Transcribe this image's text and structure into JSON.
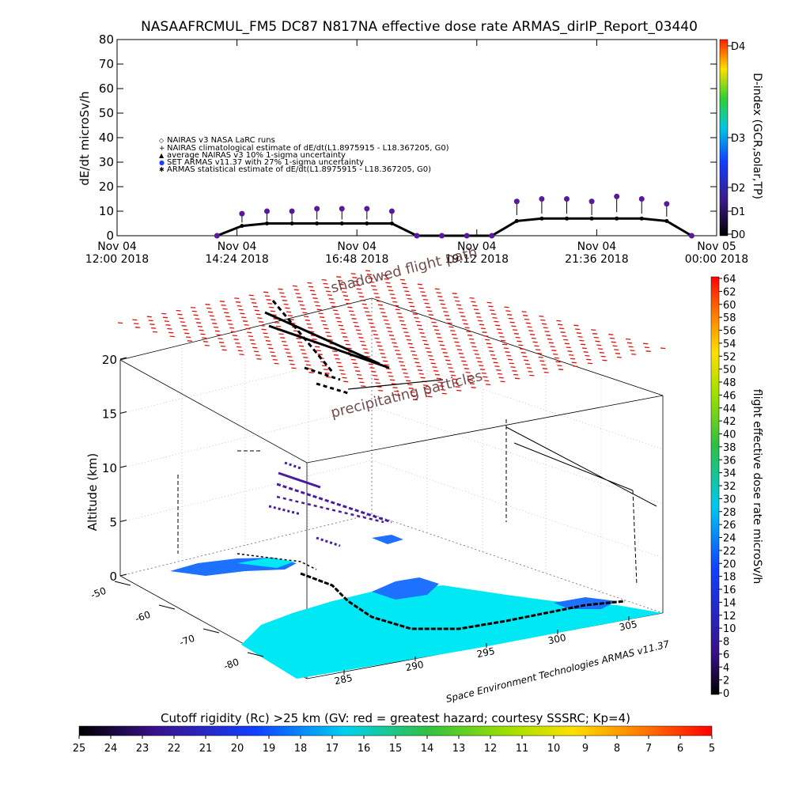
{
  "title": "NASAAFRCMUL_FM5 DC87 N817NA effective dose rate ARMAS_dirIP_Report_03440",
  "top_panel": {
    "ylabel": "dE/dt microSv/h",
    "yticks": [
      "0",
      "10",
      "20",
      "30",
      "40",
      "50",
      "60",
      "70",
      "80"
    ],
    "xticks": [
      {
        "l1": "Nov 04",
        "l2": "12:00 2018"
      },
      {
        "l1": "Nov 04",
        "l2": "14:24 2018"
      },
      {
        "l1": "Nov 04",
        "l2": "16:48 2018"
      },
      {
        "l1": "Nov 04",
        "l2": "19:12 2018"
      },
      {
        "l1": "Nov 04",
        "l2": "21:36 2018"
      },
      {
        "l1": "Nov 05",
        "l2": "00:00 2018"
      }
    ],
    "legend": [
      {
        "symbol": "◇",
        "text": "NAIRAS v3 NASA LaRC runs"
      },
      {
        "symbol": "+",
        "text": "NAIRAS climatological estimate of dE/dt(L1.8975915 - L18.367205, G0)"
      },
      {
        "symbol": "▲",
        "text": "average NAIRAS v3 10% 1-sigma uncertainty"
      },
      {
        "symbol": "●",
        "text": "SET ARMAS v11.37 with 27% 1-sigma uncertainty"
      },
      {
        "symbol": "✱",
        "text": "ARMAS statistical estimate of dE/dt(L1.8975915 - L18.367205, G0)"
      }
    ],
    "dindex_label": "D-index (GCR,solar,TP)",
    "dindex_ticks": [
      "D0",
      "D1",
      "D2",
      "D3",
      "D4"
    ]
  },
  "chart_data": {
    "type": "scatter",
    "title": "NASAAFRCMUL_FM5 DC87 N817NA effective dose rate ARMAS_dirIP_Report_03440",
    "ylabel": "dE/dt microSv/h",
    "ylim": [
      0,
      80
    ],
    "xlim": [
      "Nov 04 12:00 2018",
      "Nov 05 00:00 2018"
    ],
    "x_unit": "hours since Nov 04 12:00 2018",
    "series": [
      {
        "name": "SET ARMAS v11.37 with 27% 1-sigma uncertainty",
        "x": [
          2.0,
          2.5,
          3.0,
          3.5,
          4.0,
          4.5,
          5.0,
          5.5,
          6.0,
          6.5,
          7.0,
          7.5,
          8.0,
          8.5,
          9.0,
          9.5,
          10.0,
          10.5,
          11.0,
          11.5
        ],
        "y": [
          0,
          9,
          10,
          10,
          11,
          11,
          11,
          10,
          0,
          0,
          0,
          0,
          14,
          15,
          15,
          14,
          16,
          15,
          13,
          0
        ]
      },
      {
        "name": "ARMAS statistical estimate of dE/dt(L1.8975915 - L18.367205, G0)",
        "x": [
          2.0,
          2.5,
          3.0,
          3.5,
          4.0,
          4.5,
          5.0,
          5.5,
          6.0,
          6.5,
          7.0,
          7.5,
          8.0,
          8.5,
          9.0,
          9.5,
          10.0,
          10.5,
          11.0,
          11.5
        ],
        "y": [
          0,
          4,
          5,
          5,
          5,
          5,
          5,
          5,
          0,
          0,
          0,
          0,
          6,
          7,
          7,
          7,
          7,
          7,
          6,
          0
        ]
      }
    ]
  },
  "lower_panel": {
    "label_shadowed": "shadowed flight path",
    "label_precip": "precipitating particles",
    "altitude_label": "Altitude (km)",
    "altitude_ticks": [
      "0",
      "5",
      "10",
      "15",
      "20"
    ],
    "lat_ticks": [
      "-50",
      "-60",
      "-70",
      "-80"
    ],
    "lon_ticks": [
      "285",
      "290",
      "295",
      "300",
      "305"
    ],
    "credit": "Space Environment Technologies ARMAS v11.37"
  },
  "right_colorbar": {
    "label": "flight effective dose rate microSv/h",
    "ticks": [
      "0",
      "2",
      "4",
      "6",
      "8",
      "10",
      "12",
      "14",
      "16",
      "18",
      "20",
      "22",
      "24",
      "26",
      "28",
      "30",
      "32",
      "34",
      "36",
      "38",
      "40",
      "42",
      "44",
      "46",
      "48",
      "50",
      "52",
      "54",
      "56",
      "58",
      "60",
      "62",
      "64"
    ]
  },
  "bottom_colorbar": {
    "label": "Cutoff rigidity (Rc) >25 km (GV: red = greatest hazard; courtesy SSSRC; Kp=4)",
    "ticks": [
      "25",
      "24",
      "23",
      "22",
      "21",
      "20",
      "19",
      "18",
      "17",
      "16",
      "15",
      "14",
      "13",
      "12",
      "11",
      "10",
      "9",
      "8",
      "7",
      "6",
      "5"
    ]
  },
  "colors": {
    "armas": "#5a189a",
    "statistical": "#000000",
    "grid_red": "#e01010",
    "map_cyan": "#00e0f0",
    "map_blue": "#1e60ff",
    "track_purple": "#4a1aa0"
  }
}
